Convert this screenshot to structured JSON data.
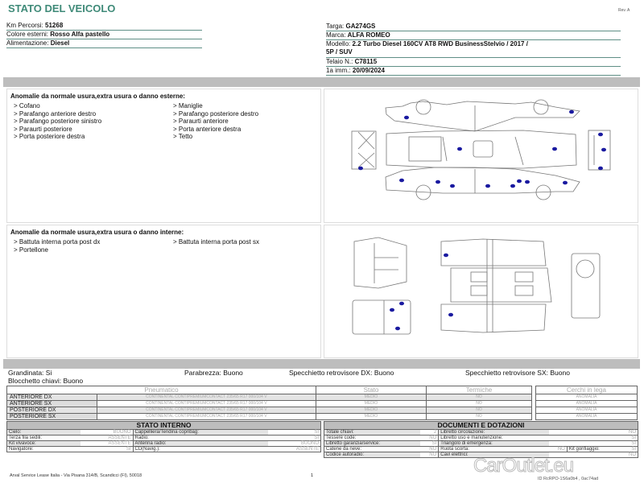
{
  "header": {
    "title": "STATO DEL VEICOLO",
    "rev": "Rev. A"
  },
  "vehicle_left": [
    {
      "label": "Km Percorsi: ",
      "value": "51268"
    },
    {
      "label": "Colore esterni: ",
      "value": "Rosso Alfa pastello"
    },
    {
      "label": "Alimentazione: ",
      "value": "Diesel"
    }
  ],
  "vehicle_right": {
    "targa": {
      "label": "Targa: ",
      "value": "GA274GS"
    },
    "marca": {
      "label": "Marca: ",
      "value": "ALFA ROMEO"
    },
    "modello": {
      "label": "Modello: ",
      "value": "2.2 Turbo Diesel 160CV AT8 RWD BusinessStelvio / 2017 /",
      "value2": "5P / SUV"
    },
    "telaio": {
      "label": "Telaio N.: ",
      "value": "C78115"
    },
    "imm": {
      "label": "1a imm.: ",
      "value": "20/09/2024"
    }
  },
  "exterior": {
    "title": "Anomalie da normale usura,extra usura o danno esterne:",
    "items": [
      "> Cofano",
      "> Maniglie",
      "> Parafango anteriore destro",
      "> Parafango posteriore destro",
      "> Parafango posteriore sinistro",
      "> Paraurti anteriore",
      "> Paraurti posteriore",
      "> Porta anteriore destra",
      "> Porta posteriore destra",
      "> Tetto"
    ]
  },
  "interior": {
    "title": "Anomalie da normale usura,extra usura o danno interne:",
    "items": [
      "> Battuta interna porta post dx",
      "> Battuta interna porta post sx",
      "> Portellone"
    ]
  },
  "checks": {
    "grandinata": "Grandinata: Si",
    "blocchetto": "Blocchetto chiavi: Buono",
    "parabrezza": "Parabrezza: Buono",
    "spec_dx": "Specchietto retrovisore DX: Buono",
    "spec_sx": "Specchietto retrovisore SX: Buono"
  },
  "tires": {
    "headers": [
      "Pneumatico",
      "Stato",
      "Termiche"
    ],
    "cerchi_header": "Cerchi in lega",
    "rows": [
      {
        "pos": "ANTERIORE DX",
        "tyre": "CONTINENTAL  CONTIPREMIUMCONTACT 235/65 R17 000/104 V",
        "stato": "MEDIO",
        "termiche": "NO",
        "cerchi": "ANOMALIA"
      },
      {
        "pos": "ANTERIORE SX",
        "tyre": "CONTINENTAL  CONTIPREMIUMCONTACT 235/65 R17 000/104 V",
        "stato": "MEDIO",
        "termiche": "NO",
        "cerchi": "ANOMALIA"
      },
      {
        "pos": "POSTERIORE DX",
        "tyre": "CONTINENTAL  CONTIPREMIUMCONTACT 235/65 R17 000/104 V",
        "stato": "MEDIO",
        "termiche": "NO",
        "cerchi": "ANOMALIA"
      },
      {
        "pos": "POSTERIORE SX",
        "tyre": "CONTINENTAL  CONTIPREMIUMCONTACT 235/65 R17 000/104 V",
        "stato": "MEDIO",
        "termiche": "NO",
        "cerchi": "ANOMALIA"
      }
    ]
  },
  "stato_interno": {
    "title": "STATO INTERNO",
    "rows": [
      [
        "Cielo:",
        "BUONO",
        "Cappelliera/Tendina copribag:",
        "SI"
      ],
      [
        "Terza fila sedili:",
        "ASSENTE",
        "Radio:",
        "SI"
      ],
      [
        "Kit vivavoce:",
        "ASSENTE",
        "Antenna radio:",
        "BUONO"
      ],
      [
        "Navigatore:",
        "SI",
        "CD(Navig.):",
        "ASSENTE"
      ]
    ]
  },
  "documenti": {
    "title": "DOCUMENTI E DOTAZIONI",
    "rows": [
      [
        "Totale chiavi:",
        "2",
        "Libretto circolazione:",
        "NO"
      ],
      [
        "Tessere code:",
        "NO",
        "Libretto uso e manutenzione:",
        "SI"
      ],
      [
        "Libretto garanzia/service:",
        "SI",
        "Triangolo di emergenza:",
        "SI"
      ],
      [
        "Catene da neve:",
        "NO",
        "Ruota scorta:",
        "NO",
        "Kit gonfiaggio:",
        "SI"
      ],
      [
        "Codice autoradio:",
        "NO",
        "Cavi elettrici:",
        "NO"
      ]
    ]
  },
  "footer": {
    "address": "Arval Service Lease Italia - Via Pisana 314/B, Scandicci (FI), 50018",
    "page": "1",
    "id": "ID RcRPO-1S6a0b4 , 0ac74ad"
  },
  "watermark": "CarOutlet.eu",
  "colors": {
    "title": "#3f8a78",
    "damage_dot": "#1a1aa0",
    "bar": "#bdbdbd"
  }
}
